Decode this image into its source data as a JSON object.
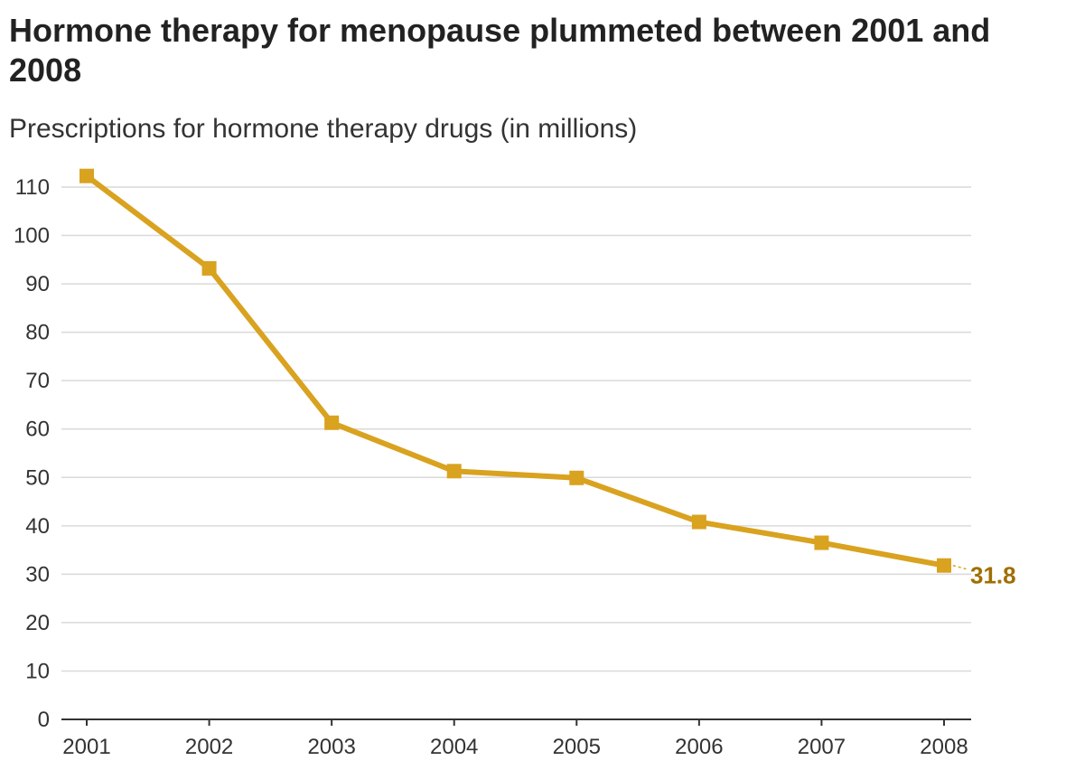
{
  "chart_data": {
    "type": "line",
    "title": "Hormone therapy for menopause plummeted between 2001 and 2008",
    "subtitle": "Prescriptions for hormone therapy drugs (in millions)",
    "x": [
      "2001",
      "2002",
      "2003",
      "2004",
      "2005",
      "2006",
      "2007",
      "2008"
    ],
    "series": [
      {
        "values": [
          112.3,
          93.2,
          61.3,
          51.3,
          49.9,
          40.8,
          36.5,
          31.8
        ]
      }
    ],
    "ylim": [
      0,
      110
    ],
    "yticks": [
      "0",
      "10",
      "20",
      "30",
      "40",
      "50",
      "60",
      "70",
      "80",
      "90",
      "100",
      "110"
    ],
    "end_label": "31.8",
    "grid": true,
    "line_color": "#D9A21F",
    "label_color": "#A06E00",
    "grid_color": "#D9D9D9",
    "axis_color": "#333333"
  }
}
